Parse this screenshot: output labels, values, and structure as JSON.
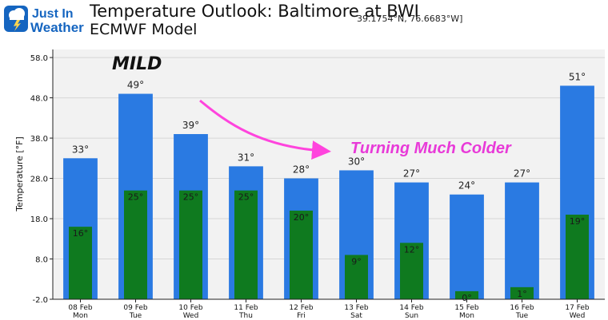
{
  "logo": {
    "line1": "Just In",
    "line2": "Weather"
  },
  "header": {
    "title": "Temperature Outlook: Baltimore at BWI",
    "subtitle": "ECMWF Model",
    "coords": "39.1754°N, 76.6683°W]"
  },
  "annotations": {
    "mild": "MILD",
    "colder": "Turning Much Colder"
  },
  "colors": {
    "high": "#2a7ae2",
    "low": "#0f7a1f",
    "arrow": "#ff44dd",
    "panel": "#f2f2f2"
  },
  "chart_data": {
    "type": "bar",
    "ylabel": "Temperature [°F]",
    "ylim": [
      -2.0,
      60.0
    ],
    "yticks": [
      "58.0",
      "48.0",
      "38.0",
      "28.0",
      "18.0",
      "8.0",
      "-2.0"
    ],
    "categories": [
      {
        "date": "08 Feb",
        "day": "Mon"
      },
      {
        "date": "09 Feb",
        "day": "Tue"
      },
      {
        "date": "10 Feb",
        "day": "Wed"
      },
      {
        "date": "11 Feb",
        "day": "Thu"
      },
      {
        "date": "12 Feb",
        "day": "Fri"
      },
      {
        "date": "13 Feb",
        "day": "Sat"
      },
      {
        "date": "14 Feb",
        "day": "Sun"
      },
      {
        "date": "15 Feb",
        "day": "Mon"
      },
      {
        "date": "16 Feb",
        "day": "Tue"
      },
      {
        "date": "17 Feb",
        "day": "Wed"
      }
    ],
    "series": [
      {
        "values": [
          33,
          49,
          39,
          31,
          28,
          30,
          27,
          24,
          27,
          51
        ],
        "labels": [
          "33°",
          "49°",
          "39°",
          "31°",
          "28°",
          "30°",
          "27°",
          "24°",
          "27°",
          "51°"
        ]
      },
      {
        "values": [
          16,
          25,
          25,
          25,
          20,
          9,
          12,
          0,
          1,
          19
        ],
        "labels": [
          "16°",
          "25°",
          "25°",
          "25°",
          "20°",
          "9°",
          "12°",
          "0°",
          "1°",
          "19°"
        ]
      }
    ]
  }
}
